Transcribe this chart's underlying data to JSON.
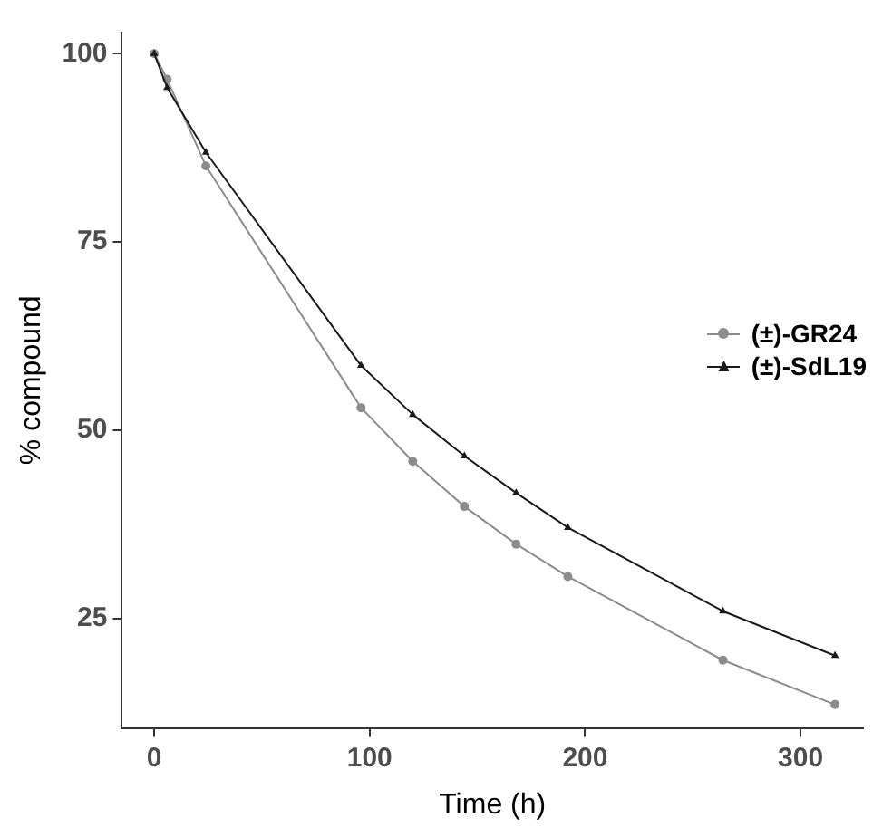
{
  "chart_data": {
    "type": "line",
    "xlabel": "Time (h)",
    "ylabel": "% compound",
    "x": [
      0,
      6,
      24,
      96,
      120,
      144,
      168,
      192,
      264,
      316
    ],
    "series": [
      {
        "name": "(±)-GR24",
        "color": "#8c8c8c",
        "marker": "circle",
        "values": [
          100,
          96.6,
          85.1,
          53.0,
          45.9,
          39.9,
          34.9,
          30.6,
          19.5,
          13.6
        ]
      },
      {
        "name": "(±)-SdL19",
        "color": "#1a1a1a",
        "marker": "triangle",
        "values": [
          100,
          95.5,
          86.9,
          58.6,
          52.1,
          46.6,
          41.7,
          37.1,
          26.0,
          20.1
        ]
      }
    ],
    "xlim": [
      -15,
      329
    ],
    "xticks": [
      0,
      100,
      200,
      300
    ],
    "ylim": [
      10.5,
      102.8
    ],
    "yticks": [
      25,
      50,
      75,
      100
    ],
    "grid": false,
    "legend": "right"
  }
}
